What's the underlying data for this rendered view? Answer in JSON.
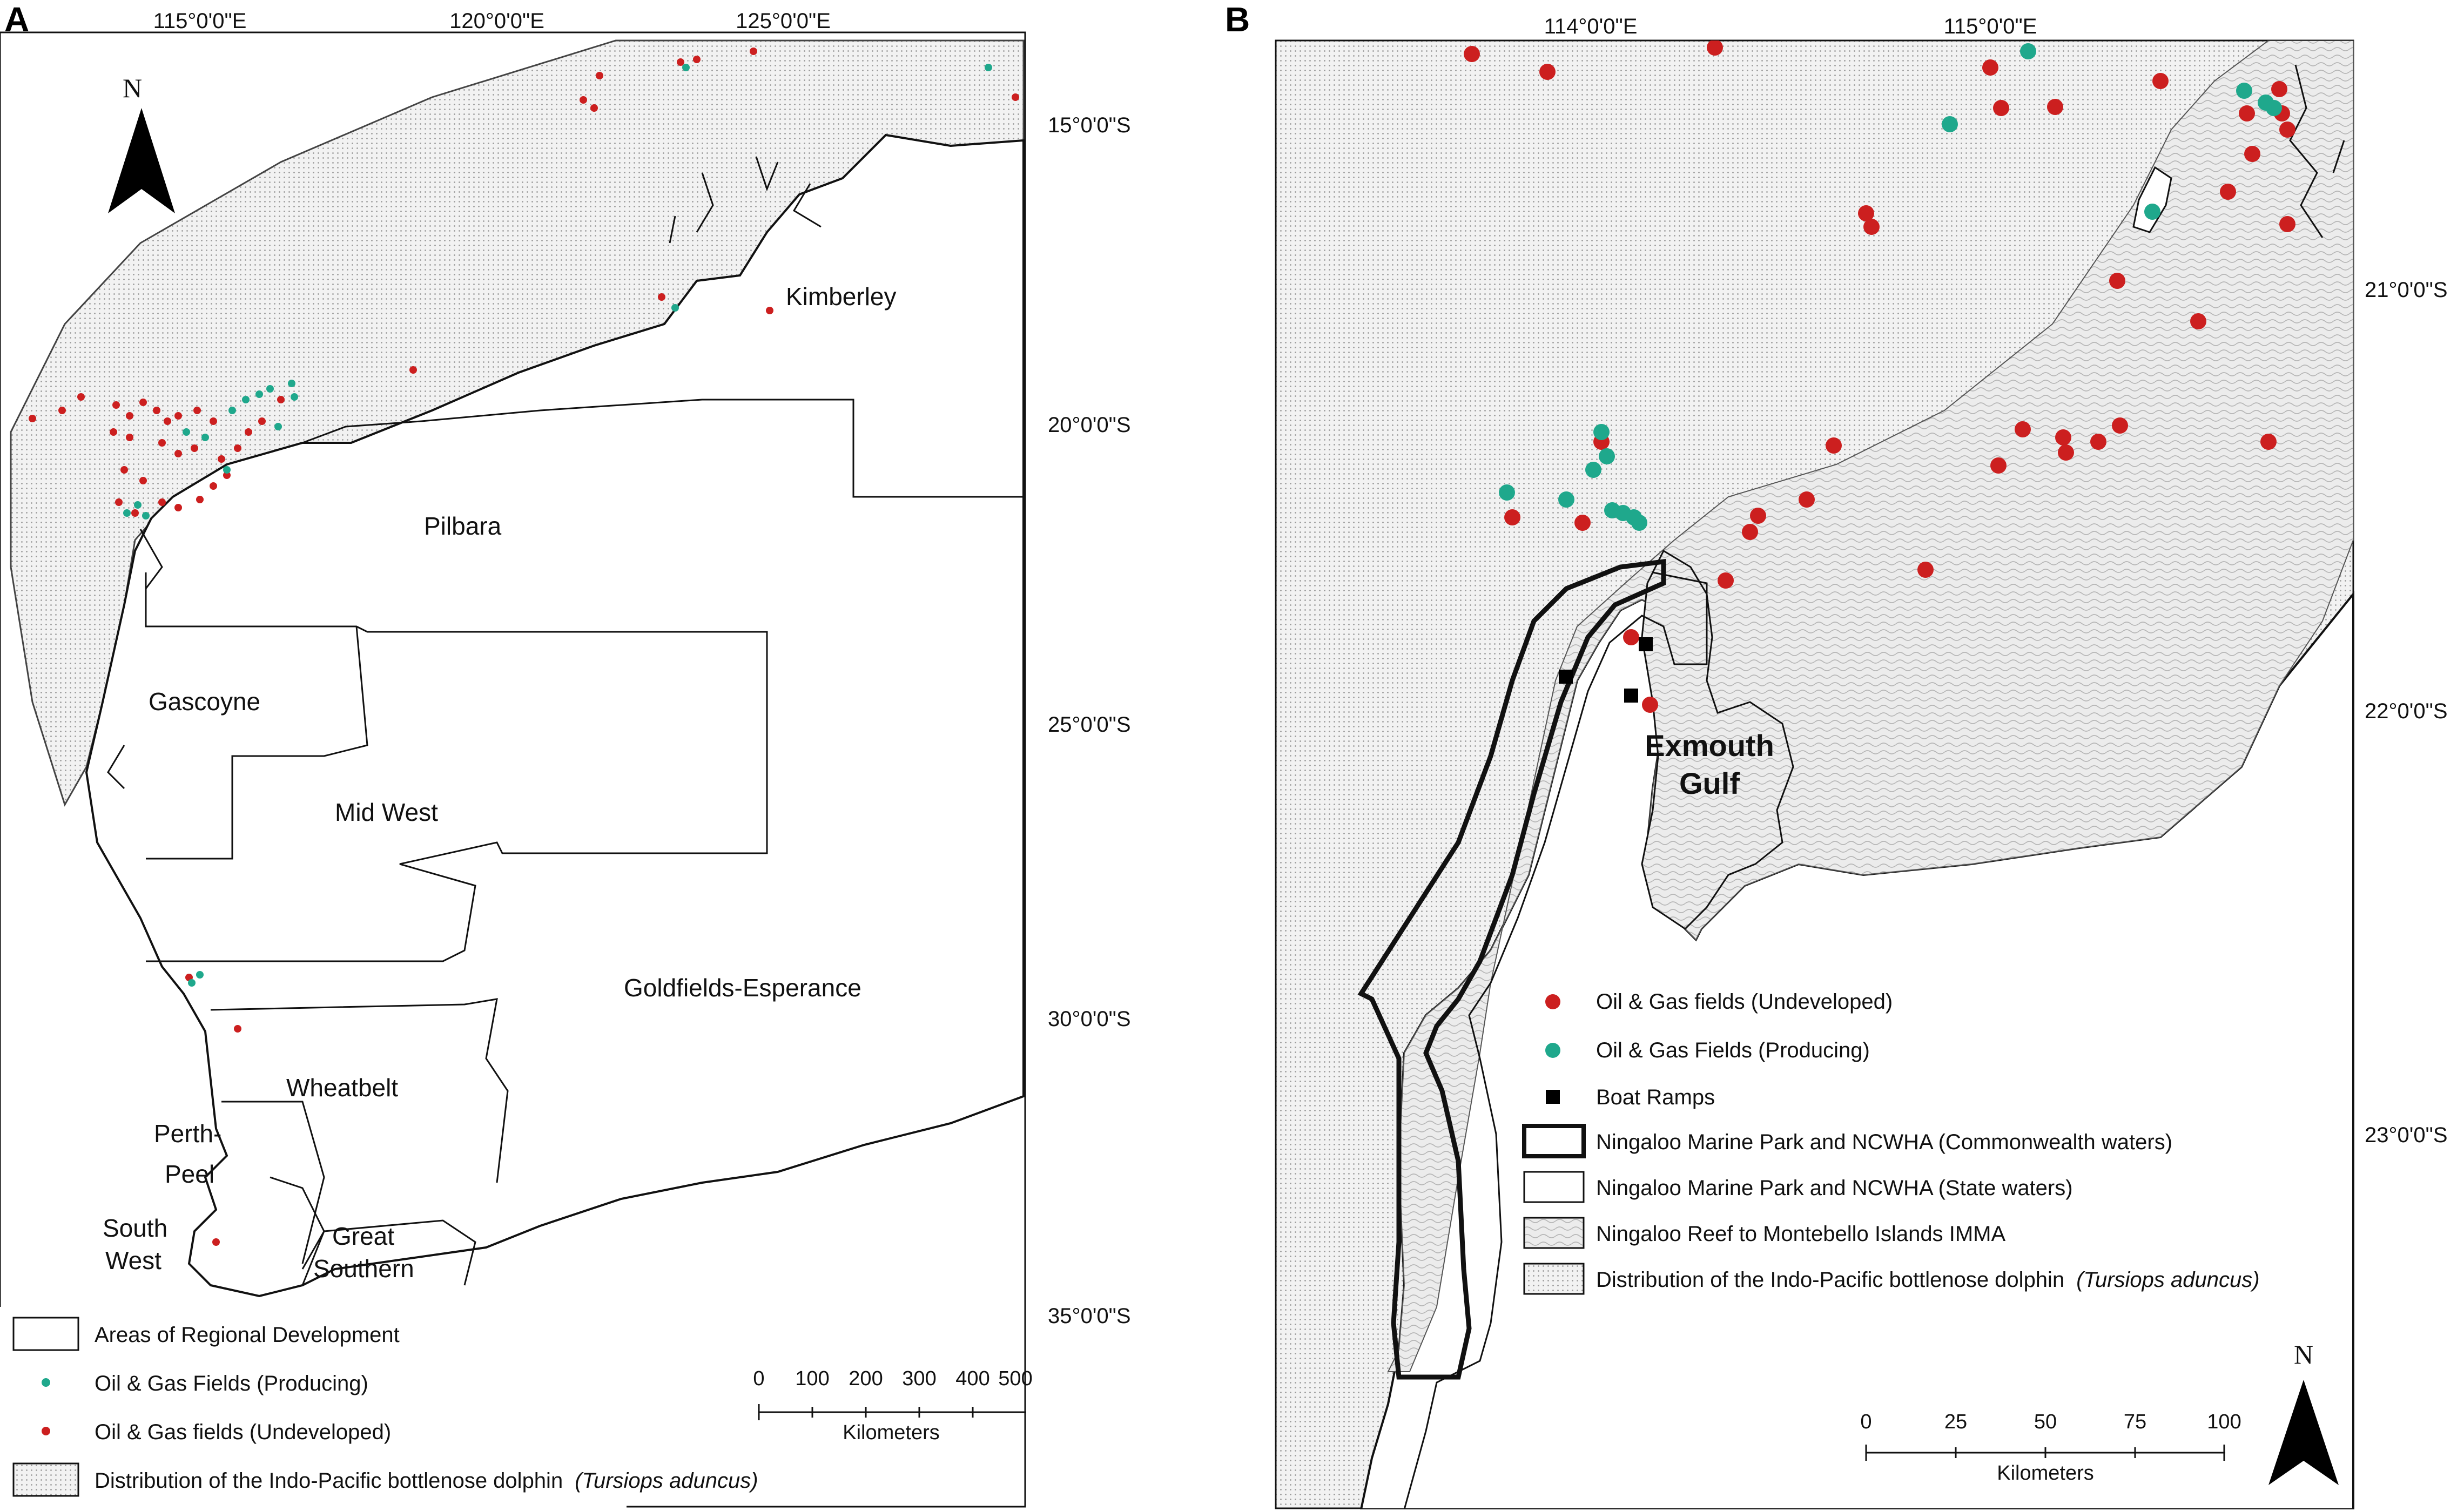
{
  "panels": {
    "a": {
      "letter": "A",
      "north": "N",
      "lon_labels": [
        "115°0'0\"E",
        "120°0'0\"E",
        "125°0'0\"E"
      ],
      "lat_labels": [
        "15°0'0\"S",
        "20°0'0\"S",
        "25°0'0\"S",
        "30°0'0\"S",
        "35°0'0\"S"
      ],
      "regions": {
        "kimberley": "Kimberley",
        "pilbara": "Pilbara",
        "gascoyne": "Gascoyne",
        "midwest": "Mid West",
        "goldfields": "Goldfields-Esperance",
        "wheatbelt": "Wheatbelt",
        "perth1": "Perth-",
        "perth2": "Peel",
        "southwest1": "South",
        "southwest2": "West",
        "great1": "Great",
        "great2": "Southern"
      },
      "scale": {
        "ticks": [
          "0",
          "100",
          "200",
          "300",
          "400",
          "500"
        ],
        "unit": "Kilometers"
      },
      "legend": {
        "regional": "Areas of Regional Development",
        "producing": "Oil & Gas Fields (Producing)",
        "undeveloped": "Oil & Gas fields (Undeveloped)",
        "distribution": "Distribution of the Indo-Pacific bottlenose dolphin",
        "species": "(Tursiops aduncus)"
      }
    },
    "b": {
      "letter": "B",
      "north": "N",
      "lon_labels": [
        "114°0'0\"E",
        "115°0'0\"E"
      ],
      "lat_labels": [
        "21°0'0\"S",
        "22°0'0\"S",
        "23°0'0\"S"
      ],
      "gulf1": "Exmouth",
      "gulf2": "Gulf",
      "scale": {
        "ticks": [
          "0",
          "25",
          "50",
          "75",
          "100"
        ],
        "unit": "Kilometers"
      },
      "legend": {
        "undeveloped": "Oil & Gas fields (Undeveloped)",
        "producing": "Oil & Gas Fields (Producing)",
        "ramps": "Boat Ramps",
        "commonwealth": "Ningaloo Marine Park and NCWHA (Commonwealth waters)",
        "state": "Ningaloo Marine Park and NCWHA (State waters)",
        "imma": "Ningaloo Reef to Montebello Islands IMMA",
        "distribution": "Distribution of the Indo-Pacific bottlenose dolphin",
        "species": "(Tursiops aduncus)"
      }
    }
  },
  "colors": {
    "undeveloped": "#cc1f1f",
    "producing": "#1fa88c",
    "dotted_fill": "#ececec",
    "land": "#ffffff",
    "line": "#111111"
  }
}
